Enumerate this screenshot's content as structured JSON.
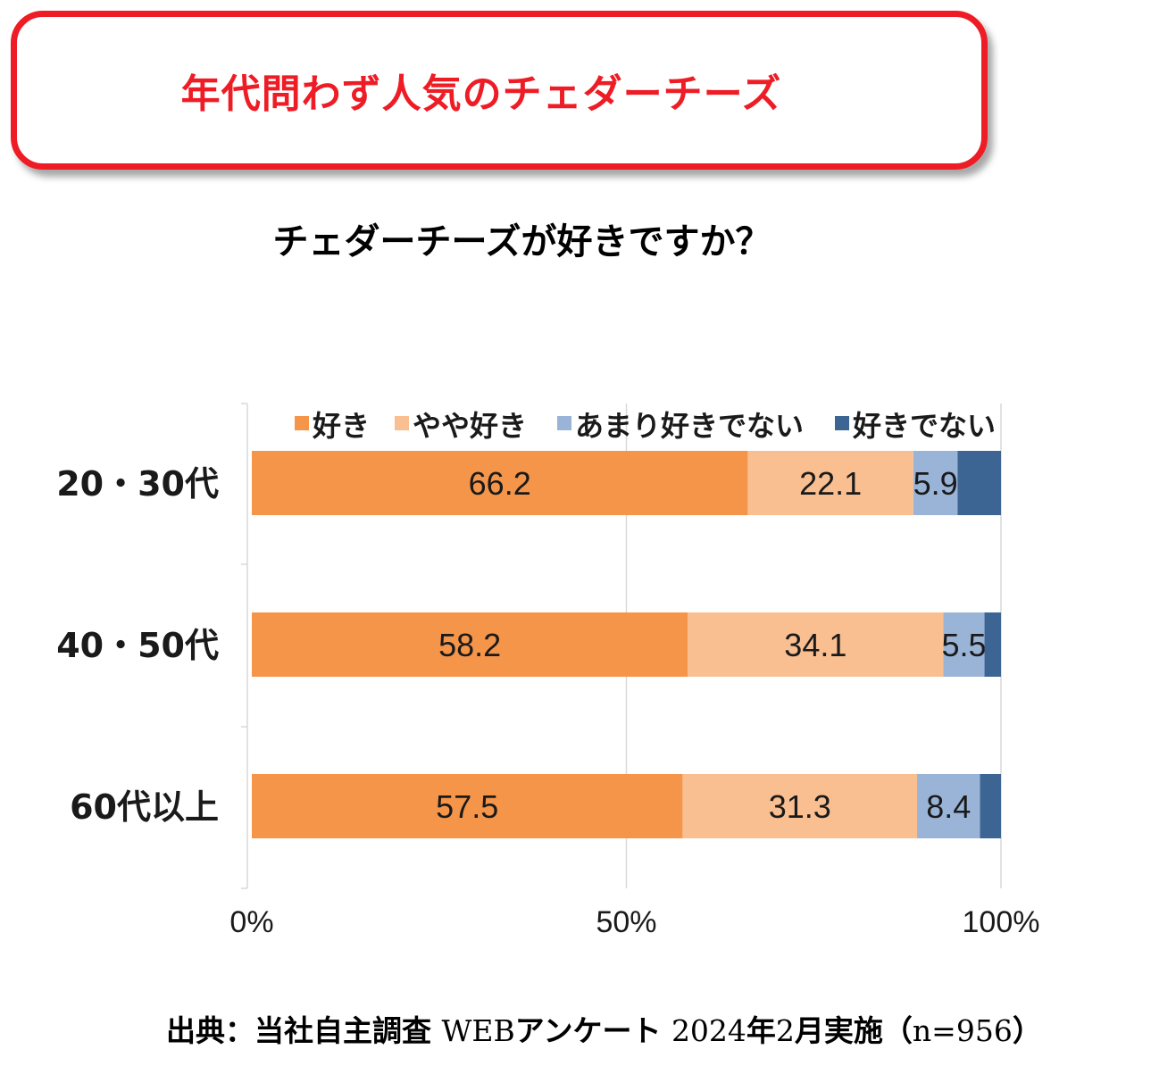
{
  "banner": {
    "title": "年代問わず人気のチェダーチーズ"
  },
  "chart_data": {
    "type": "bar",
    "orientation": "horizontal",
    "stacked": true,
    "title": "チェダーチーズが好きですか？",
    "categories": [
      "20・30代",
      "40・50代",
      "60代以上"
    ],
    "series": [
      {
        "name": "好き",
        "values": [
          66.2,
          58.2,
          57.5
        ],
        "color": "#f5954a",
        "labels": [
          "66.2",
          "58.2",
          "57.5"
        ]
      },
      {
        "name": "やや好き",
        "values": [
          22.1,
          34.1,
          31.3
        ],
        "color": "#f9bf91",
        "labels": [
          "22.1",
          "34.1",
          "31.3"
        ]
      },
      {
        "name": "あまり好きでない",
        "values": [
          5.9,
          5.5,
          8.4
        ],
        "color": "#9ab4d8",
        "labels": [
          "5.9",
          "5.5",
          "8.4"
        ]
      },
      {
        "name": "好きでない",
        "values": [
          5.8,
          2.2,
          2.8
        ],
        "color": "#3d6593",
        "labels": [
          "",
          "",
          ""
        ]
      }
    ],
    "xlim": [
      0,
      100
    ],
    "x_ticks": [
      "0%",
      "50%",
      "100%"
    ],
    "grid": true,
    "legend_position": "top"
  },
  "footer": {
    "part1": "出典：当社自主調査 ",
    "part2": "WEB",
    "part3": "アンケート ",
    "part4": "2024",
    "part5": "年",
    "part6": "2",
    "part7": "月実施",
    "part8": "（",
    "part9": "n=956",
    "part10": "）"
  }
}
